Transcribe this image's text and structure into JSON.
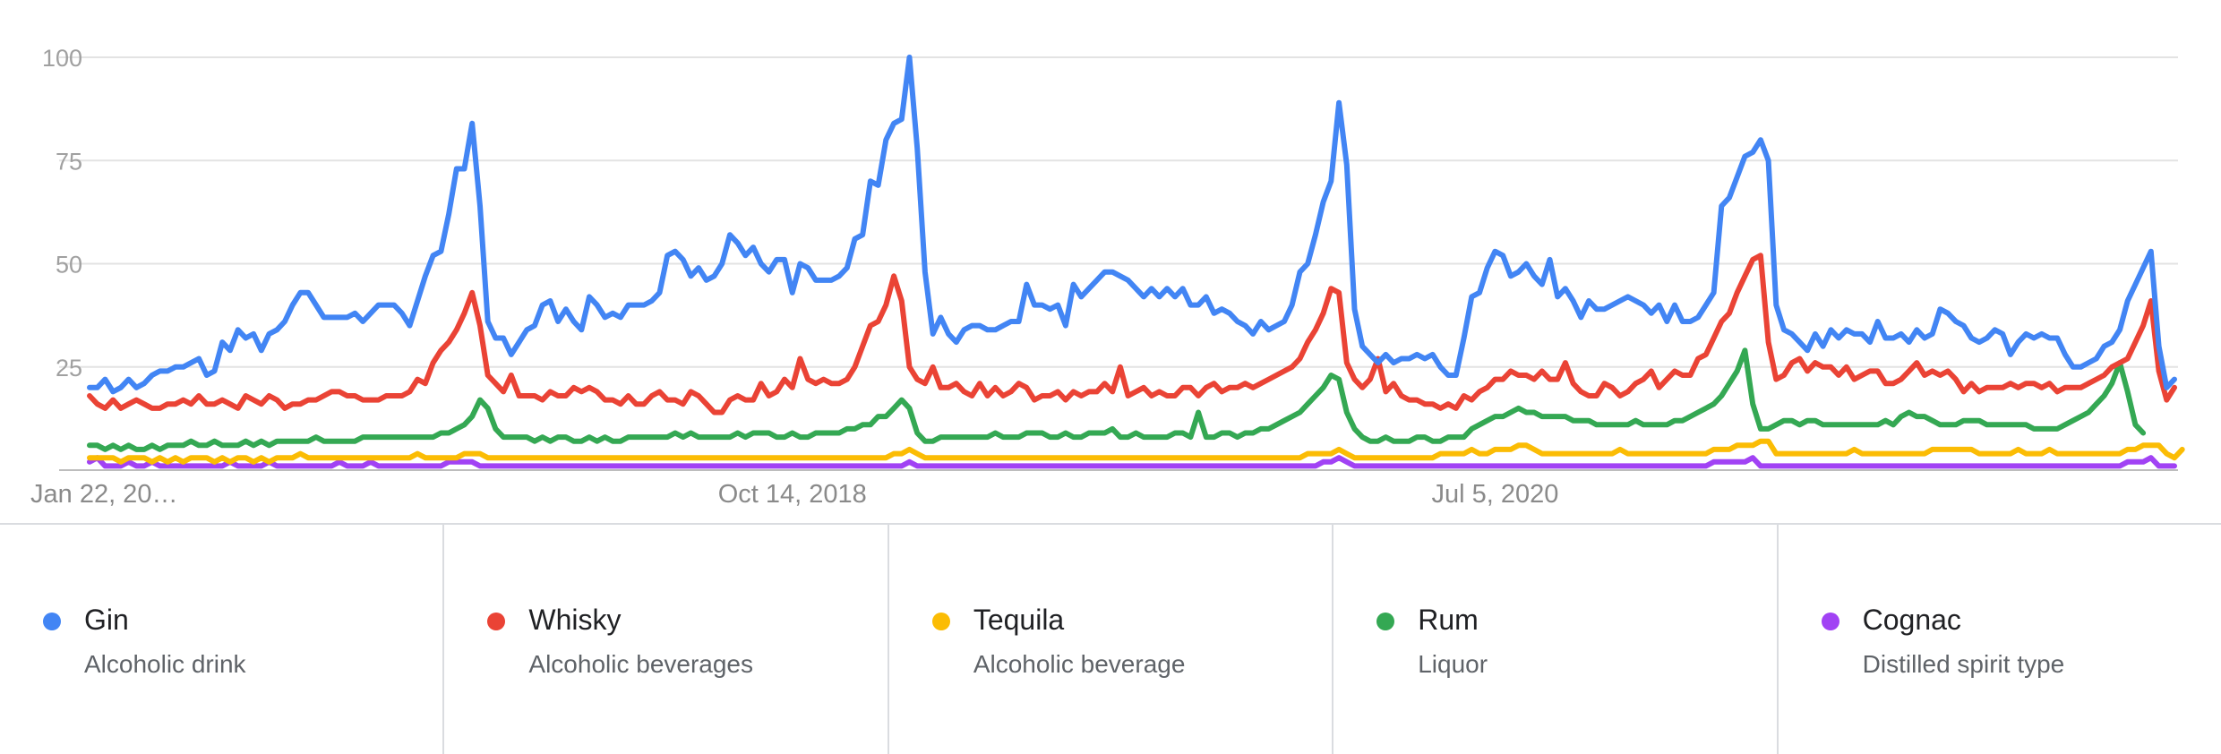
{
  "chart_data": {
    "type": "line",
    "y_ticks": [
      "100",
      "75",
      "50",
      "25"
    ],
    "ylim": [
      0,
      100
    ],
    "x_tick_labels": [
      "Jan 22, 20…",
      "Oct 14, 2018",
      "Jul 5, 2020"
    ],
    "x_tick_week_index": [
      0,
      90,
      180
    ],
    "grid": true,
    "legend_placement": "bottom",
    "series": [
      {
        "name": "Gin",
        "description": "Alcoholic drink",
        "color": "#4285f4",
        "values": [
          20,
          20,
          22,
          19,
          20,
          22,
          20,
          21,
          23,
          24,
          24,
          25,
          25,
          26,
          27,
          23,
          24,
          31,
          29,
          34,
          32,
          33,
          29,
          33,
          34,
          36,
          40,
          43,
          43,
          40,
          37,
          37,
          37,
          37,
          38,
          36,
          38,
          40,
          40,
          40,
          38,
          35,
          41,
          47,
          52,
          53,
          62,
          73,
          73,
          84,
          64,
          36,
          32,
          32,
          28,
          31,
          34,
          35,
          40,
          41,
          36,
          39,
          36,
          34,
          42,
          40,
          37,
          38,
          37,
          40,
          40,
          40,
          41,
          43,
          52,
          53,
          51,
          47,
          49,
          46,
          47,
          50,
          57,
          55,
          52,
          54,
          50,
          48,
          51,
          51,
          43,
          50,
          49,
          46,
          46,
          46,
          47,
          49,
          56,
          57,
          70,
          69,
          80,
          84,
          85,
          100,
          78,
          48,
          33,
          37,
          33,
          31,
          34,
          35,
          35,
          34,
          34,
          35,
          36,
          36,
          45,
          40,
          40,
          39,
          40,
          35,
          45,
          42,
          44,
          46,
          48,
          48,
          47,
          46,
          44,
          42,
          44,
          42,
          44,
          42,
          44,
          40,
          40,
          42,
          38,
          39,
          38,
          36,
          35,
          33,
          36,
          34,
          35,
          36,
          40,
          48,
          50,
          57,
          65,
          70,
          89,
          74,
          39,
          30,
          28,
          26,
          28,
          26,
          27,
          27,
          28,
          27,
          28,
          25,
          23,
          23,
          32,
          42,
          43,
          49,
          53,
          52,
          47,
          48,
          50,
          47,
          45,
          51,
          42,
          44,
          41,
          37,
          41,
          39,
          39,
          40,
          41,
          42,
          41,
          40,
          38,
          40,
          36,
          40,
          36,
          36,
          37,
          40,
          43,
          64,
          66,
          71,
          76,
          77,
          80,
          75,
          40,
          34,
          33,
          31,
          29,
          33,
          30,
          34,
          32,
          34,
          33,
          33,
          31,
          36,
          32,
          32,
          33,
          31,
          34,
          32,
          33,
          39,
          38,
          36,
          35,
          32,
          31,
          32,
          34,
          33,
          28,
          31,
          33,
          32,
          33,
          32,
          32,
          28,
          25,
          25,
          26,
          27,
          30,
          31,
          34,
          41,
          45,
          49,
          53,
          30,
          20,
          22
        ]
      },
      {
        "name": "Whisky",
        "description": "Alcoholic beverages",
        "color": "#ea4335",
        "values": [
          18,
          16,
          15,
          17,
          15,
          16,
          17,
          16,
          15,
          15,
          16,
          16,
          17,
          16,
          18,
          16,
          16,
          17,
          16,
          15,
          18,
          17,
          16,
          18,
          17,
          15,
          16,
          16,
          17,
          17,
          18,
          19,
          19,
          18,
          18,
          17,
          17,
          17,
          18,
          18,
          18,
          19,
          22,
          21,
          26,
          29,
          31,
          34,
          38,
          43,
          35,
          23,
          21,
          19,
          23,
          18,
          18,
          18,
          17,
          19,
          18,
          18,
          20,
          19,
          20,
          19,
          17,
          17,
          16,
          18,
          16,
          16,
          18,
          19,
          17,
          17,
          16,
          19,
          18,
          16,
          14,
          14,
          17,
          18,
          17,
          17,
          21,
          18,
          19,
          22,
          20,
          27,
          22,
          21,
          22,
          21,
          21,
          22,
          25,
          30,
          35,
          36,
          40,
          47,
          41,
          25,
          22,
          21,
          25,
          20,
          20,
          21,
          19,
          18,
          21,
          18,
          20,
          18,
          19,
          21,
          20,
          17,
          18,
          18,
          19,
          17,
          19,
          18,
          19,
          19,
          21,
          19,
          25,
          18,
          19,
          20,
          18,
          19,
          18,
          18,
          20,
          20,
          18,
          20,
          21,
          19,
          20,
          20,
          21,
          20,
          21,
          22,
          23,
          24,
          25,
          27,
          31,
          34,
          38,
          44,
          43,
          26,
          22,
          20,
          22,
          27,
          19,
          21,
          18,
          17,
          17,
          16,
          16,
          15,
          16,
          15,
          18,
          17,
          19,
          20,
          22,
          22,
          24,
          23,
          23,
          22,
          24,
          22,
          22,
          26,
          21,
          19,
          18,
          18,
          21,
          20,
          18,
          19,
          21,
          22,
          24,
          20,
          22,
          24,
          23,
          23,
          27,
          28,
          32,
          36,
          38,
          43,
          47,
          51,
          52,
          31,
          22,
          23,
          26,
          27,
          24,
          26,
          25,
          25,
          23,
          25,
          22,
          23,
          24,
          24,
          21,
          21,
          22,
          24,
          26,
          23,
          24,
          23,
          24,
          22,
          19,
          21,
          19,
          20,
          20,
          20,
          21,
          20,
          21,
          21,
          20,
          21,
          19,
          20,
          20,
          20,
          21,
          22,
          23,
          25,
          26,
          27,
          31,
          35,
          41,
          24,
          17,
          20
        ]
      },
      {
        "name": "Tequila",
        "description": "Alcoholic beverage",
        "color": "#fbbc04",
        "values": [
          3,
          3,
          3,
          3,
          2,
          3,
          3,
          3,
          2,
          3,
          2,
          3,
          2,
          3,
          3,
          3,
          2,
          3,
          2,
          3,
          3,
          2,
          3,
          2,
          3,
          3,
          3,
          4,
          3,
          3,
          3,
          3,
          3,
          3,
          3,
          3,
          3,
          3,
          3,
          3,
          3,
          3,
          4,
          3,
          3,
          3,
          3,
          3,
          4,
          4,
          4,
          3,
          3,
          3,
          3,
          3,
          3,
          3,
          3,
          3,
          3,
          3,
          3,
          3,
          3,
          3,
          3,
          3,
          3,
          3,
          3,
          3,
          3,
          3,
          3,
          3,
          3,
          3,
          3,
          3,
          3,
          3,
          3,
          3,
          3,
          3,
          3,
          3,
          3,
          3,
          3,
          3,
          3,
          3,
          3,
          3,
          3,
          3,
          3,
          3,
          3,
          3,
          3,
          4,
          4,
          5,
          4,
          3,
          3,
          3,
          3,
          3,
          3,
          3,
          3,
          3,
          3,
          3,
          3,
          3,
          3,
          3,
          3,
          3,
          3,
          3,
          3,
          3,
          3,
          3,
          3,
          3,
          3,
          3,
          3,
          3,
          3,
          3,
          3,
          3,
          3,
          3,
          3,
          3,
          3,
          3,
          3,
          3,
          3,
          3,
          3,
          3,
          3,
          3,
          3,
          3,
          4,
          4,
          4,
          4,
          5,
          4,
          3,
          3,
          3,
          3,
          3,
          3,
          3,
          3,
          3,
          3,
          3,
          4,
          4,
          4,
          4,
          5,
          4,
          4,
          5,
          5,
          5,
          6,
          6,
          5,
          4,
          4,
          4,
          4,
          4,
          4,
          4,
          4,
          4,
          4,
          5,
          4,
          4,
          4,
          4,
          4,
          4,
          4,
          4,
          4,
          4,
          4,
          5,
          5,
          5,
          6,
          6,
          6,
          7,
          7,
          4,
          4,
          4,
          4,
          4,
          4,
          4,
          4,
          4,
          4,
          5,
          4,
          4,
          4,
          4,
          4,
          4,
          4,
          4,
          4,
          5,
          5,
          5,
          5,
          5,
          5,
          4,
          4,
          4,
          4,
          4,
          5,
          4,
          4,
          4,
          5,
          4,
          4,
          4,
          4,
          4,
          4,
          4,
          4,
          4,
          5,
          5,
          6,
          6,
          6,
          4,
          3,
          5
        ]
      },
      {
        "name": "Rum",
        "description": "Liquor",
        "color": "#34a853",
        "values": [
          6,
          6,
          5,
          6,
          5,
          6,
          5,
          5,
          6,
          5,
          6,
          6,
          6,
          7,
          6,
          6,
          7,
          6,
          6,
          6,
          7,
          6,
          7,
          6,
          7,
          7,
          7,
          7,
          7,
          8,
          7,
          7,
          7,
          7,
          7,
          8,
          8,
          8,
          8,
          8,
          8,
          8,
          8,
          8,
          8,
          9,
          9,
          10,
          11,
          13,
          17,
          15,
          10,
          8,
          8,
          8,
          8,
          7,
          8,
          7,
          8,
          8,
          7,
          7,
          8,
          7,
          8,
          7,
          7,
          8,
          8,
          8,
          8,
          8,
          8,
          9,
          8,
          9,
          8,
          8,
          8,
          8,
          8,
          9,
          8,
          9,
          9,
          9,
          8,
          8,
          9,
          8,
          8,
          9,
          9,
          9,
          9,
          10,
          10,
          11,
          11,
          13,
          13,
          15,
          17,
          15,
          9,
          7,
          7,
          8,
          8,
          8,
          8,
          8,
          8,
          8,
          9,
          8,
          8,
          8,
          9,
          9,
          9,
          8,
          8,
          9,
          8,
          8,
          9,
          9,
          9,
          10,
          8,
          8,
          9,
          8,
          8,
          8,
          8,
          9,
          9,
          8,
          14,
          8,
          8,
          9,
          9,
          8,
          9,
          9,
          10,
          10,
          11,
          12,
          13,
          14,
          16,
          18,
          20,
          23,
          22,
          14,
          10,
          8,
          7,
          7,
          8,
          7,
          7,
          7,
          8,
          8,
          7,
          7,
          8,
          8,
          8,
          10,
          11,
          12,
          13,
          13,
          14,
          15,
          14,
          14,
          13,
          13,
          13,
          13,
          12,
          12,
          12,
          11,
          11,
          11,
          11,
          11,
          12,
          11,
          11,
          11,
          11,
          12,
          12,
          13,
          14,
          15,
          16,
          18,
          21,
          24,
          29,
          16,
          10,
          10,
          11,
          12,
          12,
          11,
          12,
          12,
          11,
          11,
          11,
          11,
          11,
          11,
          11,
          11,
          12,
          11,
          13,
          14,
          13,
          13,
          12,
          11,
          11,
          11,
          12,
          12,
          12,
          11,
          11,
          11,
          11,
          11,
          11,
          10,
          10,
          10,
          10,
          11,
          12,
          13,
          14,
          16,
          18,
          21,
          26,
          19,
          11,
          9
        ]
      },
      {
        "name": "Cognac",
        "description": "Distilled spirit type",
        "color": "#a142f4",
        "values": [
          2,
          3,
          1,
          1,
          1,
          2,
          1,
          1,
          2,
          1,
          1,
          1,
          1,
          1,
          1,
          1,
          1,
          1,
          2,
          1,
          1,
          1,
          1,
          2,
          1,
          1,
          1,
          1,
          1,
          1,
          1,
          1,
          2,
          1,
          1,
          1,
          2,
          1,
          1,
          1,
          1,
          1,
          1,
          1,
          1,
          1,
          2,
          2,
          2,
          2,
          1,
          1,
          1,
          1,
          1,
          1,
          1,
          1,
          1,
          1,
          1,
          1,
          1,
          1,
          1,
          1,
          1,
          1,
          1,
          1,
          1,
          1,
          1,
          1,
          1,
          1,
          1,
          1,
          1,
          1,
          1,
          1,
          1,
          1,
          1,
          1,
          1,
          1,
          1,
          1,
          1,
          1,
          1,
          1,
          1,
          1,
          1,
          1,
          1,
          1,
          1,
          1,
          1,
          1,
          1,
          2,
          1,
          1,
          1,
          1,
          1,
          1,
          1,
          1,
          1,
          1,
          1,
          1,
          1,
          1,
          1,
          1,
          1,
          1,
          1,
          1,
          1,
          1,
          1,
          1,
          1,
          1,
          1,
          1,
          1,
          1,
          1,
          1,
          1,
          1,
          1,
          1,
          1,
          1,
          1,
          1,
          1,
          1,
          1,
          1,
          1,
          1,
          1,
          1,
          1,
          1,
          1,
          1,
          2,
          2,
          3,
          2,
          1,
          1,
          1,
          1,
          1,
          1,
          1,
          1,
          1,
          1,
          1,
          1,
          1,
          1,
          1,
          1,
          1,
          1,
          1,
          1,
          1,
          1,
          1,
          1,
          1,
          1,
          1,
          1,
          1,
          1,
          1,
          1,
          1,
          1,
          1,
          1,
          1,
          1,
          1,
          1,
          1,
          1,
          1,
          1,
          1,
          1,
          2,
          2,
          2,
          2,
          2,
          3,
          1,
          1,
          1,
          1,
          1,
          1,
          1,
          1,
          1,
          1,
          1,
          1,
          1,
          1,
          1,
          1,
          1,
          1,
          1,
          1,
          1,
          1,
          1,
          1,
          1,
          1,
          1,
          1,
          1,
          1,
          1,
          1,
          1,
          1,
          1,
          1,
          1,
          1,
          1,
          1,
          1,
          1,
          1,
          1,
          1,
          1,
          1,
          2,
          2,
          2,
          3,
          1,
          1,
          1
        ]
      }
    ]
  }
}
